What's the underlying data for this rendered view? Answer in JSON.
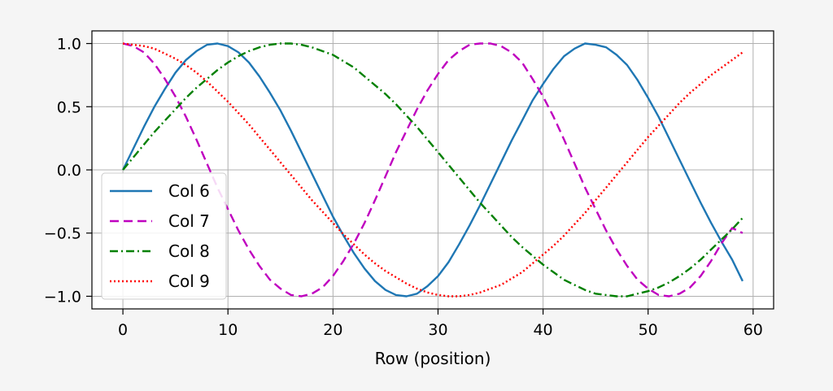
{
  "chart_data": {
    "type": "line",
    "title": "",
    "xlabel": "Row (position)",
    "ylabel": "",
    "xlim": [
      -2.95,
      61.95
    ],
    "ylim": [
      -1.1,
      1.1
    ],
    "xticks": [
      0,
      10,
      20,
      30,
      40,
      50,
      60
    ],
    "xtick_labels": [
      "0",
      "10",
      "20",
      "30",
      "40",
      "50",
      "60"
    ],
    "yticks": [
      -1.0,
      -0.5,
      0.0,
      0.5,
      1.0
    ],
    "ytick_labels": [
      "−1.0",
      "−0.5",
      "0.0",
      "0.5",
      "1.0"
    ],
    "grid": true,
    "legend_position": "lower-left",
    "x": [
      0,
      1,
      2,
      3,
      4,
      5,
      6,
      7,
      8,
      9,
      10,
      11,
      12,
      13,
      14,
      15,
      16,
      17,
      18,
      19,
      20,
      21,
      22,
      23,
      24,
      25,
      26,
      27,
      28,
      29,
      30,
      31,
      32,
      33,
      34,
      35,
      36,
      37,
      38,
      39,
      40,
      41,
      42,
      43,
      44,
      45,
      46,
      47,
      48,
      49,
      50,
      51,
      52,
      53,
      54,
      55,
      56,
      57,
      58,
      59
    ],
    "series": [
      {
        "name": "Col 6",
        "color": "#1f77b4",
        "dash": "solid",
        "values": [
          0.0,
          0.17,
          0.34,
          0.5,
          0.64,
          0.77,
          0.87,
          0.94,
          0.99,
          1.0,
          0.98,
          0.93,
          0.85,
          0.74,
          0.61,
          0.47,
          0.31,
          0.14,
          -0.03,
          -0.2,
          -0.37,
          -0.52,
          -0.66,
          -0.78,
          -0.88,
          -0.95,
          -0.99,
          -1.0,
          -0.98,
          -0.92,
          -0.84,
          -0.73,
          -0.59,
          -0.44,
          -0.28,
          -0.11,
          0.06,
          0.23,
          0.39,
          0.55,
          0.68,
          0.8,
          0.9,
          0.96,
          1.0,
          0.99,
          0.97,
          0.91,
          0.83,
          0.71,
          0.57,
          0.42,
          0.25,
          0.08,
          -0.09,
          -0.26,
          -0.42,
          -0.57,
          -0.71,
          -0.88
        ]
      },
      {
        "name": "Col 7",
        "color": "#bf00bf",
        "dash": "dashed",
        "values": [
          1.0,
          0.98,
          0.93,
          0.84,
          0.72,
          0.58,
          0.42,
          0.24,
          0.05,
          -0.14,
          -0.31,
          -0.48,
          -0.63,
          -0.76,
          -0.87,
          -0.94,
          -0.99,
          -1.0,
          -0.98,
          -0.93,
          -0.84,
          -0.72,
          -0.58,
          -0.42,
          -0.24,
          -0.05,
          0.14,
          0.31,
          0.48,
          0.63,
          0.76,
          0.87,
          0.94,
          0.99,
          1.0,
          1.0,
          0.98,
          0.93,
          0.85,
          0.72,
          0.58,
          0.42,
          0.24,
          0.05,
          -0.14,
          -0.31,
          -0.48,
          -0.63,
          -0.76,
          -0.87,
          -0.94,
          -0.99,
          -1.0,
          -0.98,
          -0.93,
          -0.84,
          -0.72,
          -0.58,
          -0.46,
          -0.5
        ]
      },
      {
        "name": "Col 8",
        "color": "#008000",
        "dash": "dashdot",
        "values": [
          0.0,
          0.1,
          0.2,
          0.3,
          0.39,
          0.48,
          0.57,
          0.65,
          0.72,
          0.79,
          0.85,
          0.9,
          0.94,
          0.97,
          0.99,
          1.0,
          1.0,
          0.99,
          0.97,
          0.94,
          0.91,
          0.86,
          0.81,
          0.74,
          0.67,
          0.6,
          0.52,
          0.43,
          0.34,
          0.24,
          0.14,
          0.04,
          -0.06,
          -0.16,
          -0.26,
          -0.35,
          -0.44,
          -0.53,
          -0.61,
          -0.68,
          -0.75,
          -0.81,
          -0.87,
          -0.91,
          -0.95,
          -0.98,
          -0.99,
          -1.0,
          -1.0,
          -0.98,
          -0.96,
          -0.93,
          -0.89,
          -0.84,
          -0.78,
          -0.71,
          -0.63,
          -0.55,
          -0.47,
          -0.38
        ]
      },
      {
        "name": "Col 9",
        "color": "#ff0000",
        "dash": "dotted",
        "values": [
          1.0,
          0.99,
          0.98,
          0.96,
          0.92,
          0.88,
          0.83,
          0.77,
          0.7,
          0.62,
          0.54,
          0.45,
          0.36,
          0.26,
          0.16,
          0.06,
          -0.04,
          -0.14,
          -0.24,
          -0.33,
          -0.42,
          -0.51,
          -0.59,
          -0.67,
          -0.74,
          -0.8,
          -0.85,
          -0.9,
          -0.94,
          -0.97,
          -0.99,
          -1.0,
          -1.0,
          -0.99,
          -0.97,
          -0.94,
          -0.91,
          -0.86,
          -0.81,
          -0.74,
          -0.67,
          -0.6,
          -0.52,
          -0.43,
          -0.34,
          -0.24,
          -0.14,
          -0.04,
          0.06,
          0.16,
          0.26,
          0.35,
          0.44,
          0.53,
          0.61,
          0.68,
          0.75,
          0.81,
          0.87,
          0.93
        ]
      }
    ]
  }
}
